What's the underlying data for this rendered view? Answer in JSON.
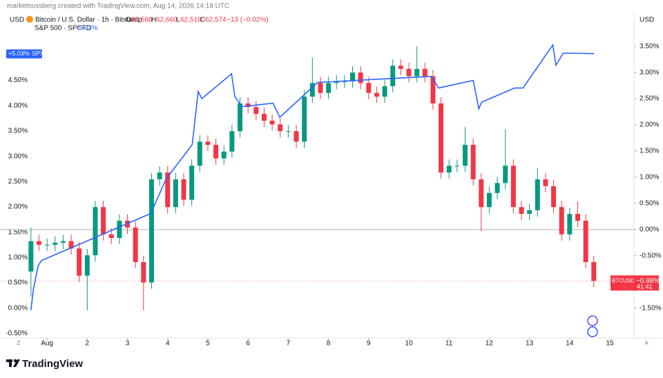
{
  "chart_data": {
    "type": "candlestick",
    "credit": "marketsussberg created with TradingView.com, Aug 14, 2026 14:18 UTC",
    "left_currency": "USD",
    "right_currency": "USD",
    "symbol_title": "Bitcoin / U.S. Dollar · 1h · Bitstamp",
    "ohlc": {
      "o_label": "O",
      "o": "62,588",
      "h_label": "H",
      "h": "62,660",
      "l_label": "L",
      "l": "62,518",
      "c_label": "C",
      "c": "62,574",
      "change": "−13 (−0.02%)"
    },
    "compare_title": "S&P 500 · SPCFD",
    "compare_value": "5.03%",
    "brand": "TradingView",
    "xlim": [
      -0.17,
      15.6
    ],
    "xticks": [
      {
        "value": 1,
        "label": "Aug"
      },
      2,
      3,
      4,
      5,
      6,
      7,
      8,
      9,
      10,
      11,
      12,
      13,
      14,
      15
    ],
    "ylim": [
      -0.59,
      5.68
    ],
    "yticks": [
      {
        "value": -0.5,
        "label": "-0.50%"
      },
      {
        "value": 0,
        "label": "0.00%"
      },
      {
        "value": 0.5,
        "label": "0.50%"
      },
      {
        "value": 1,
        "label": "1.00%"
      },
      {
        "value": 1.5,
        "label": "1.50%"
      },
      {
        "value": 2,
        "label": "2.00%"
      },
      {
        "value": 2.5,
        "label": "2.50%"
      },
      {
        "value": 3,
        "label": "3.00%"
      },
      {
        "value": 3.5,
        "label": "3.50%"
      },
      {
        "value": 4,
        "label": "4.00%"
      },
      {
        "value": 4.5,
        "label": "4.50%"
      }
    ],
    "y2lim": [
      -2.07,
      3.99
    ],
    "y2ticks": [
      {
        "value": -1.5,
        "label": "-1.50%"
      },
      {
        "value": -0.5,
        "label": "-0.50%"
      },
      {
        "value": 0,
        "label": "0.00%"
      },
      {
        "value": 0.5,
        "label": "0.50%"
      },
      {
        "value": 1,
        "label": "1.00%"
      },
      {
        "value": 1.5,
        "label": "1.50%"
      },
      {
        "value": 2,
        "label": "2.00%"
      },
      {
        "value": 2.5,
        "label": "2.50%"
      },
      {
        "value": 3,
        "label": "3.00%"
      },
      {
        "value": 3.5,
        "label": "3.50%"
      }
    ],
    "zero_line": true,
    "series": [
      {
        "name": "BTCUSD",
        "type": "candlestick",
        "axis": "y2",
        "up_color": "#089981",
        "down_color": "#f23645",
        "value_label": "−0.98%",
        "countdown": "41:41",
        "x": [
          0.6,
          0.8,
          1.0,
          1.2,
          1.4,
          1.6,
          1.8,
          2.0,
          2.2,
          2.4,
          2.6,
          2.8,
          3.0,
          3.2,
          3.4,
          3.6,
          3.8,
          4.0,
          4.2,
          4.4,
          4.6,
          4.8,
          5.0,
          5.2,
          5.4,
          5.6,
          5.8,
          6.0,
          6.2,
          6.4,
          6.6,
          6.8,
          7.0,
          7.2,
          7.4,
          7.6,
          7.8,
          8.0,
          8.2,
          8.4,
          8.6,
          8.8,
          9.0,
          9.2,
          9.4,
          9.6,
          9.8,
          10.0,
          10.2,
          10.4,
          10.6,
          10.8,
          11.0,
          11.2,
          11.4,
          11.6,
          11.8,
          12.0,
          12.2,
          12.4,
          12.6,
          12.8,
          13.0,
          13.2,
          13.4,
          13.6,
          13.8,
          14.0,
          14.2,
          14.4,
          14.6
        ],
        "open": [
          -0.8,
          -0.22,
          -0.29,
          -0.29,
          -0.25,
          -0.22,
          -0.36,
          -0.88,
          -0.49,
          0.43,
          -0.09,
          -0.16,
          0.17,
          0.04,
          -0.62,
          -1.01,
          0.96,
          1.09,
          0.43,
          0.96,
          0.57,
          1.22,
          1.68,
          1.62,
          1.36,
          1.49,
          1.88,
          2.41,
          2.34,
          2.21,
          2.08,
          2.01,
          1.88,
          1.88,
          1.68,
          2.54,
          2.8,
          2.61,
          2.8,
          2.83,
          2.83,
          3.0,
          2.8,
          2.61,
          2.54,
          2.74,
          3.13,
          3.07,
          2.93,
          3.07,
          2.93,
          2.41,
          1.09,
          1.22,
          1.22,
          1.62,
          0.96,
          0.43,
          0.7,
          0.89,
          1.22,
          0.43,
          0.3,
          0.37,
          0.96,
          0.83,
          0.43,
          -0.09,
          0.3,
          0.17,
          -0.62
        ],
        "high": [
          0.04,
          -0.1,
          -0.17,
          -0.13,
          -0.1,
          -0.1,
          -0.24,
          -0.37,
          0.55,
          0.55,
          0.03,
          0.29,
          0.29,
          0.16,
          -0.5,
          1.08,
          1.21,
          1.21,
          1.08,
          1.08,
          1.34,
          1.8,
          1.8,
          1.74,
          1.61,
          2.0,
          2.53,
          2.53,
          2.46,
          2.33,
          2.2,
          2.13,
          2.0,
          2.0,
          2.66,
          3.29,
          2.92,
          2.92,
          2.95,
          2.95,
          3.12,
          3.12,
          2.92,
          2.73,
          2.86,
          3.25,
          3.25,
          3.19,
          3.5,
          3.19,
          3.05,
          2.53,
          1.34,
          1.34,
          1.96,
          1.74,
          1.08,
          0.82,
          1.01,
          1.92,
          1.34,
          0.55,
          0.49,
          1.18,
          1.08,
          0.95,
          0.55,
          0.42,
          0.54,
          0.29,
          -0.5
        ],
        "low": [
          -1.28,
          -0.41,
          -0.41,
          -0.41,
          -0.37,
          -0.48,
          -1.0,
          -1.54,
          -0.61,
          -0.21,
          -0.28,
          -0.28,
          -0.08,
          -0.74,
          -1.54,
          -1.13,
          0.84,
          0.31,
          0.31,
          0.45,
          0.45,
          1.1,
          1.5,
          1.24,
          1.24,
          1.37,
          1.76,
          2.22,
          2.09,
          1.96,
          1.89,
          1.76,
          1.76,
          1.56,
          1.56,
          2.42,
          2.49,
          2.49,
          2.68,
          2.71,
          2.71,
          2.68,
          2.49,
          2.42,
          2.42,
          2.62,
          2.95,
          2.81,
          2.81,
          2.81,
          2.29,
          0.97,
          0.97,
          1.1,
          1.1,
          0.84,
          -0.03,
          0.31,
          0.58,
          0.77,
          0.31,
          0.18,
          0.18,
          0.25,
          0.71,
          0.31,
          -0.21,
          -0.21,
          0.05,
          -0.74,
          -1.1
        ],
        "close": [
          -0.22,
          -0.29,
          -0.29,
          -0.25,
          -0.22,
          -0.36,
          -0.88,
          -0.49,
          0.43,
          -0.09,
          -0.16,
          0.17,
          0.04,
          -0.62,
          -1.01,
          0.96,
          1.09,
          0.43,
          0.96,
          0.57,
          1.22,
          1.68,
          1.62,
          1.36,
          1.49,
          1.88,
          2.41,
          2.34,
          2.21,
          2.08,
          2.01,
          1.88,
          1.88,
          1.68,
          2.54,
          2.8,
          2.61,
          2.8,
          2.83,
          2.83,
          3.0,
          2.8,
          2.61,
          2.54,
          2.74,
          3.13,
          3.07,
          2.93,
          3.07,
          2.93,
          2.41,
          1.09,
          1.22,
          1.22,
          1.62,
          0.96,
          0.43,
          0.7,
          0.89,
          1.22,
          0.43,
          0.3,
          0.37,
          0.96,
          0.83,
          0.43,
          -0.09,
          0.3,
          0.17,
          -0.62,
          -0.98
        ]
      },
      {
        "name": "SPX",
        "type": "line",
        "axis": "y",
        "color": "#2962ff",
        "value_label": "+5.03%",
        "x": [
          0.6,
          0.66,
          0.78,
          0.86,
          3.58,
          3.96,
          4.61,
          4.76,
          4.85,
          5.59,
          5.67,
          5.85,
          6.62,
          6.79,
          7.73,
          10.56,
          10.74,
          11.6,
          11.74,
          11.81,
          12.63,
          12.84,
          13.58,
          13.66,
          13.84,
          14.61
        ],
        "values": [
          -0.04,
          0.37,
          0.84,
          0.94,
          1.87,
          2.55,
          3.23,
          4.28,
          4.14,
          4.63,
          4.18,
          3.98,
          4.05,
          3.77,
          4.46,
          4.58,
          4.35,
          4.5,
          3.94,
          4.07,
          4.35,
          4.35,
          5.2,
          4.8,
          5.04,
          5.03
        ]
      }
    ]
  }
}
